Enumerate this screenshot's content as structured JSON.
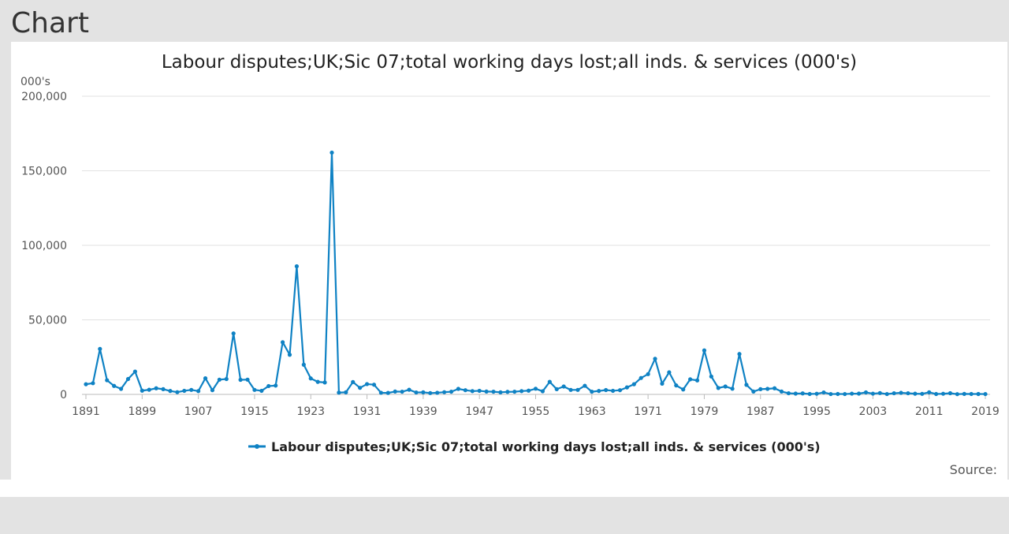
{
  "page": {
    "heading": "Chart",
    "source_label": "Source:"
  },
  "chart_data": {
    "type": "line",
    "title": "Labour disputes;UK;Sic 07;total working days lost;all inds. & services (000's)",
    "ylabel": "000's",
    "xlabel": "",
    "ylim": [
      0,
      200000
    ],
    "xlim": [
      1891,
      2019
    ],
    "y_ticks": [
      0,
      50000,
      100000,
      150000,
      200000
    ],
    "y_tick_labels": [
      "0",
      "50,000",
      "100,000",
      "150,000",
      "200,000"
    ],
    "x_ticks": [
      1891,
      1899,
      1907,
      1915,
      1923,
      1931,
      1939,
      1947,
      1955,
      1963,
      1971,
      1979,
      1987,
      1995,
      2003,
      2011,
      2019
    ],
    "grid": "horizontal",
    "legend_position": "bottom",
    "color": "#0f82c4",
    "series": [
      {
        "name": "Labour disputes;UK;Sic 07;total working days lost;all inds. & services (000's)",
        "x": [
          1891,
          1892,
          1893,
          1894,
          1895,
          1896,
          1897,
          1898,
          1899,
          1900,
          1901,
          1902,
          1903,
          1904,
          1905,
          1906,
          1907,
          1908,
          1909,
          1910,
          1911,
          1912,
          1913,
          1914,
          1915,
          1916,
          1917,
          1918,
          1919,
          1920,
          1921,
          1922,
          1923,
          1924,
          1925,
          1926,
          1927,
          1928,
          1929,
          1930,
          1931,
          1932,
          1933,
          1934,
          1935,
          1936,
          1937,
          1938,
          1939,
          1940,
          1941,
          1942,
          1943,
          1944,
          1945,
          1946,
          1947,
          1948,
          1949,
          1950,
          1951,
          1952,
          1953,
          1954,
          1955,
          1956,
          1957,
          1958,
          1959,
          1960,
          1961,
          1962,
          1963,
          1964,
          1965,
          1966,
          1967,
          1968,
          1969,
          1970,
          1971,
          1972,
          1973,
          1974,
          1975,
          1976,
          1977,
          1978,
          1979,
          1980,
          1981,
          1982,
          1983,
          1984,
          1985,
          1986,
          1987,
          1988,
          1989,
          1990,
          1991,
          1992,
          1993,
          1994,
          1995,
          1996,
          1997,
          1998,
          1999,
          2000,
          2001,
          2002,
          2003,
          2004,
          2005,
          2006,
          2007,
          2008,
          2009,
          2010,
          2011,
          2012,
          2013,
          2014,
          2015,
          2016,
          2017,
          2018,
          2019
        ],
        "values": [
          6800,
          7500,
          30500,
          9500,
          5700,
          3700,
          10300,
          15300,
          2500,
          3100,
          4100,
          3500,
          2300,
          1500,
          2400,
          3000,
          2200,
          10800,
          2800,
          9900,
          10300,
          40900,
          9800,
          9900,
          3000,
          2400,
          5600,
          5900,
          35000,
          26600,
          85900,
          19900,
          10700,
          8400,
          8000,
          162200,
          1200,
          1400,
          8300,
          4400,
          6900,
          6500,
          1100,
          1000,
          1900,
          1800,
          3100,
          1300,
          1400,
          900,
          1100,
          1500,
          1800,
          3700,
          2800,
          2200,
          2400,
          1900,
          1800,
          1400,
          1700,
          1800,
          2200,
          2500,
          3800,
          2100,
          8400,
          3500,
          5300,
          3000,
          3000,
          5800,
          1800,
          2300,
          2900,
          2400,
          2800,
          4700,
          6800,
          11000,
          13600,
          23900,
          7200,
          14800,
          6000,
          3300,
          10100,
          9400,
          29500,
          12000,
          4300,
          5300,
          3800,
          27100,
          6400,
          1900,
          3500,
          3700,
          4100,
          1900,
          760,
          530,
          650,
          280,
          420,
          1300,
          240,
          280,
          240,
          500,
          530,
          1320,
          500,
          900,
          220,
          750,
          1040,
          760,
          460,
          360,
          1390,
          250,
          440,
          790,
          170,
          320,
          280,
          270,
          230
        ]
      }
    ]
  }
}
